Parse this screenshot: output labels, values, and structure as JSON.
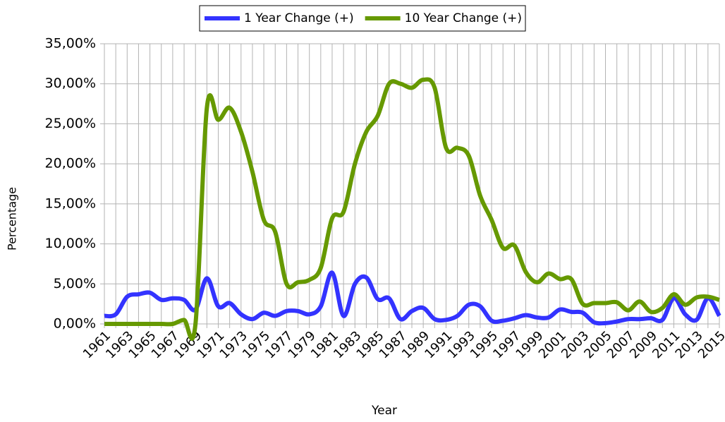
{
  "chart_data": {
    "type": "line",
    "x_label": "Year",
    "y_label": "Percentage",
    "categories": [
      "1961",
      null,
      "1963",
      null,
      "1965",
      null,
      "1967",
      null,
      "1969",
      null,
      "1971",
      null,
      "1973",
      null,
      "1975",
      null,
      "1977",
      null,
      "1979",
      null,
      "1981",
      null,
      "1983",
      null,
      "1985",
      null,
      "1987",
      null,
      "1989",
      null,
      "1991",
      null,
      "1993",
      null,
      "1995",
      null,
      "1997",
      null,
      "1999",
      null,
      "2001",
      null,
      "2003",
      null,
      "2005",
      null,
      "2007",
      null,
      "2009",
      null,
      "2011",
      null,
      "2013",
      null,
      "2015"
    ],
    "series": [
      {
        "name": "1 Year Change (+)",
        "color": "#3333ff",
        "values": [
          1.0,
          1.2,
          3.4,
          3.7,
          3.9,
          3.0,
          3.2,
          3.0,
          1.8,
          5.7,
          2.2,
          2.6,
          1.2,
          0.6,
          1.4,
          1.0,
          1.6,
          1.6,
          1.2,
          2.2,
          6.4,
          1.0,
          5.0,
          5.8,
          3.1,
          3.2,
          0.6,
          1.6,
          2.0,
          0.6,
          0.5,
          1.0,
          2.4,
          2.2,
          0.4,
          0.4,
          0.7,
          1.1,
          0.8,
          0.8,
          1.8,
          1.5,
          1.4,
          0.2,
          0.1,
          0.3,
          0.6,
          0.6,
          0.7,
          0.5,
          3.2,
          1.2,
          0.5,
          3.2,
          1.0
        ]
      },
      {
        "name": "10 Year Change (+)",
        "color": "#669900",
        "values": [
          0,
          0,
          0,
          0,
          0,
          0,
          0,
          0.5,
          0,
          27,
          25.5,
          27,
          24,
          19,
          13,
          11.5,
          5.0,
          5.2,
          5.5,
          7,
          13.2,
          14,
          20,
          24,
          26,
          30,
          30,
          29.5,
          30.5,
          29.5,
          22,
          22,
          21,
          16,
          13,
          9.5,
          9.8,
          6.5,
          5.2,
          6.3,
          5.6,
          5.6,
          2.5,
          2.6,
          2.6,
          2.7,
          1.7,
          2.8,
          1.5,
          2.0,
          3.7,
          2.4,
          3.3,
          3.4,
          3.0
        ]
      }
    ],
    "ylim": [
      0,
      35
    ],
    "yticks": [
      {
        "value": 0,
        "label": "0,00%"
      },
      {
        "value": 5,
        "label": "5,00%"
      },
      {
        "value": 10,
        "label": "10,00%"
      },
      {
        "value": 15,
        "label": "15,00%"
      },
      {
        "value": 20,
        "label": "20,00%"
      },
      {
        "value": 25,
        "label": "25,00%"
      },
      {
        "value": 30,
        "label": "30,00%"
      },
      {
        "value": 35,
        "label": "35,00%"
      }
    ],
    "grid": true,
    "legend": "top"
  }
}
